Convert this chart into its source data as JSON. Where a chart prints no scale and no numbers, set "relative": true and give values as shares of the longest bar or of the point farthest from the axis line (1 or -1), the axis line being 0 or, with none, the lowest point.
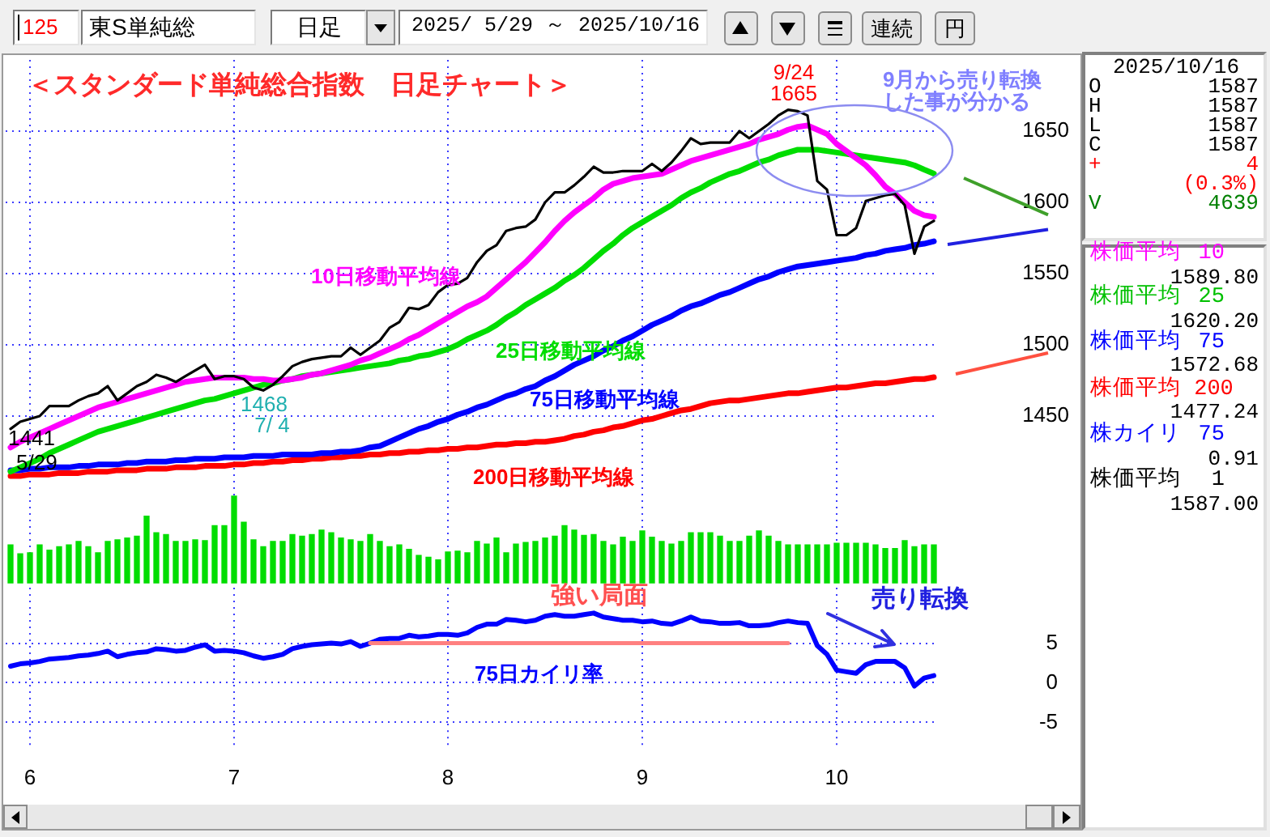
{
  "chart_data": [
    {
      "type": "other",
      "annotations": [
        "125",
        "東S単純総",
        "日足",
        "2025/ 5/29 ～ 2025/10/16",
        "連続",
        "円"
      ]
    },
    {
      "type": "line",
      "title": "＜スタンダード単純総合指数　日足チャート＞",
      "categories": [
        null,
        null,
        "6",
        null,
        null,
        null,
        null,
        null,
        null,
        null,
        null,
        null,
        null,
        null,
        null,
        null,
        null,
        null,
        null,
        null,
        null,
        null,
        null,
        "7",
        null,
        null,
        null,
        null,
        null,
        null,
        null,
        null,
        null,
        null,
        null,
        null,
        null,
        null,
        null,
        null,
        null,
        null,
        null,
        null,
        null,
        "8",
        null,
        null,
        null,
        null,
        null,
        null,
        null,
        null,
        null,
        null,
        null,
        null,
        null,
        null,
        null,
        null,
        null,
        null,
        null,
        "9",
        null,
        null,
        null,
        null,
        null,
        null,
        null,
        null,
        null,
        null,
        null,
        null,
        null,
        null,
        null,
        null,
        null,
        null,
        null,
        "10",
        null,
        null,
        null,
        null,
        null,
        null,
        null,
        null,
        null,
        null
      ],
      "series": [
        {
          "color": "#000000",
          "values": [
            1441,
            1446,
            1448,
            1450,
            1457,
            1457,
            1457,
            1461,
            1464,
            1466,
            1471,
            1461,
            1466,
            1471,
            1474,
            1479,
            1477,
            1474,
            1478,
            1482,
            1486,
            1476,
            1478,
            1478,
            1476,
            1470,
            1468,
            1472,
            1478,
            1485,
            1488,
            1490,
            1491,
            1492,
            1492,
            1498,
            1493,
            1498,
            1503,
            1512,
            1516,
            1526,
            1525,
            1528,
            1537,
            1542,
            1543,
            1547,
            1558,
            1566,
            1570,
            1580,
            1582,
            1583,
            1588,
            1600,
            1607,
            1607,
            1612,
            1618,
            1625,
            1621,
            1621,
            1622,
            1622,
            1622,
            1627,
            1622,
            1628,
            1636,
            1645,
            1641,
            1642,
            1642,
            1642,
            1650,
            1645,
            1650,
            1655,
            1661,
            1665,
            1664,
            1661,
            1615,
            1609,
            1577,
            1577,
            1582,
            1601,
            1603,
            1605,
            1606,
            1598,
            1564,
            1583,
            1587
          ]
        },
        {
          "name": "10日移動平均線",
          "color": "#ff00ff",
          "values": [
            1428,
            1432,
            1435,
            1438,
            1441,
            1444,
            1447,
            1450,
            1453,
            1456,
            1458,
            1460,
            1462,
            1464,
            1466,
            1468,
            1470,
            1472,
            1474,
            1475,
            1476,
            1477,
            1477,
            1477,
            1477,
            1476,
            1476,
            1475,
            1475,
            1476,
            1477,
            1479,
            1480,
            1482,
            1484,
            1486,
            1489,
            1491,
            1494,
            1497,
            1500,
            1504,
            1507,
            1511,
            1515,
            1519,
            1523,
            1527,
            1530,
            1534,
            1540,
            1546,
            1552,
            1558,
            1565,
            1572,
            1580,
            1587,
            1593,
            1598,
            1603,
            1609,
            1613,
            1615,
            1617,
            1618,
            1619,
            1620,
            1623,
            1626,
            1629,
            1631,
            1633,
            1635,
            1637,
            1639,
            1641,
            1644,
            1646,
            1648,
            1651,
            1653,
            1654,
            1651,
            1648,
            1641,
            1636,
            1631,
            1626,
            1619,
            1611,
            1606,
            1600,
            1594,
            1591,
            1589.8
          ]
        },
        {
          "name": "25日移動平均線",
          "color": "#00dd00",
          "values": [
            1411,
            1414,
            1417,
            1420,
            1424,
            1427,
            1430,
            1433,
            1436,
            1439,
            1441,
            1443,
            1445,
            1447,
            1449,
            1451,
            1453,
            1455,
            1457,
            1459,
            1461,
            1462,
            1464,
            1466,
            1468,
            1470,
            1472,
            1473,
            1475,
            1476,
            1478,
            1479,
            1480,
            1481,
            1482,
            1483,
            1484,
            1485,
            1486,
            1487,
            1489,
            1490,
            1492,
            1493,
            1495,
            1497,
            1500,
            1504,
            1507,
            1510,
            1514,
            1519,
            1523,
            1528,
            1532,
            1536,
            1540,
            1545,
            1549,
            1554,
            1560,
            1566,
            1571,
            1577,
            1582,
            1586,
            1590,
            1594,
            1598,
            1603,
            1607,
            1610,
            1614,
            1617,
            1620,
            1622,
            1625,
            1628,
            1630,
            1633,
            1635,
            1637,
            1637,
            1637,
            1636,
            1635,
            1634,
            1633,
            1632,
            1631,
            1630,
            1629,
            1628,
            1626,
            1623,
            1620.2
          ]
        },
        {
          "name": "75日移動平均線",
          "color": "#0000ff",
          "values": [
            1412,
            1412,
            1413,
            1413,
            1414,
            1414,
            1414,
            1415,
            1415,
            1416,
            1416,
            1416,
            1417,
            1417,
            1418,
            1418,
            1418,
            1419,
            1419,
            1420,
            1420,
            1420,
            1421,
            1421,
            1421,
            1422,
            1422,
            1422,
            1423,
            1423,
            1423,
            1423,
            1424,
            1424,
            1425,
            1425,
            1426,
            1428,
            1429,
            1432,
            1435,
            1438,
            1441,
            1443,
            1446,
            1448,
            1451,
            1453,
            1456,
            1458,
            1461,
            1464,
            1466,
            1469,
            1471,
            1475,
            1478,
            1482,
            1486,
            1489,
            1492,
            1496,
            1499,
            1503,
            1506,
            1510,
            1514,
            1517,
            1520,
            1524,
            1527,
            1529,
            1532,
            1535,
            1537,
            1540,
            1543,
            1546,
            1548,
            1551,
            1553,
            1555,
            1556,
            1557,
            1558,
            1559,
            1560,
            1561,
            1563,
            1564,
            1566,
            1567,
            1568,
            1570,
            1571,
            1572.68
          ]
        },
        {
          "name": "200日移動平均線",
          "color": "#ff0000",
          "values": [
            1408,
            1408,
            1409,
            1409,
            1409,
            1410,
            1410,
            1410,
            1411,
            1411,
            1411,
            1412,
            1412,
            1412,
            1413,
            1413,
            1413,
            1414,
            1414,
            1414,
            1415,
            1415,
            1415,
            1416,
            1416,
            1417,
            1417,
            1418,
            1418,
            1419,
            1419,
            1420,
            1420,
            1421,
            1421,
            1422,
            1422,
            1423,
            1423,
            1424,
            1424,
            1425,
            1425,
            1426,
            1426,
            1427,
            1427,
            1428,
            1428,
            1429,
            1430,
            1430,
            1431,
            1431,
            1432,
            1432,
            1433,
            1434,
            1436,
            1437,
            1439,
            1440,
            1442,
            1443,
            1445,
            1447,
            1448,
            1450,
            1452,
            1454,
            1455,
            1457,
            1459,
            1460,
            1461,
            1461,
            1462,
            1463,
            1464,
            1465,
            1466,
            1466,
            1467,
            1468,
            1469,
            1470,
            1470,
            1471,
            1472,
            1473,
            1473,
            1474,
            1475,
            1476,
            1476,
            1477.24
          ]
        }
      ],
      "ylim": [
        1400,
        1700
      ],
      "yticks": [
        1450,
        1500,
        1550,
        1600,
        1650
      ],
      "grid": true,
      "tick_labels": "y",
      "annotations": [
        "9/24",
        "1665",
        "1441",
        "5/29",
        "1468",
        "7/ 4",
        "9月から売り転換",
        "した事が分かる"
      ]
    },
    {
      "type": "bar",
      "relative": true,
      "categories": [
        null,
        null,
        "6",
        null,
        null,
        null,
        null,
        null,
        null,
        null,
        null,
        null,
        null,
        null,
        null,
        null,
        null,
        null,
        null,
        null,
        null,
        null,
        null,
        "7",
        null,
        null,
        null,
        null,
        null,
        null,
        null,
        null,
        null,
        null,
        null,
        null,
        null,
        null,
        null,
        null,
        null,
        null,
        null,
        null,
        null,
        "8",
        null,
        null,
        null,
        null,
        null,
        null,
        null,
        null,
        null,
        null,
        null,
        null,
        null,
        null,
        null,
        null,
        null,
        null,
        null,
        "9",
        null,
        null,
        null,
        null,
        null,
        null,
        null,
        null,
        null,
        null,
        null,
        null,
        null,
        null,
        null,
        null,
        null,
        null,
        null,
        "10",
        null,
        null,
        null,
        null,
        null,
        null,
        null,
        null,
        null,
        null
      ],
      "values": [
        0.44,
        0.34,
        0.35,
        0.44,
        0.38,
        0.42,
        0.44,
        0.48,
        0.42,
        0.35,
        0.48,
        0.5,
        0.52,
        0.54,
        0.77,
        0.58,
        0.56,
        0.48,
        0.48,
        0.5,
        0.49,
        0.66,
        0.66,
        1,
        0.7,
        0.5,
        0.42,
        0.48,
        0.48,
        0.56,
        0.54,
        0.56,
        0.61,
        0.58,
        0.52,
        0.5,
        0.48,
        0.56,
        0.48,
        0.42,
        0.44,
        0.39,
        0.32,
        0.3,
        0.27,
        0.36,
        0.37,
        0.35,
        0.48,
        0.45,
        0.52,
        0.35,
        0.45,
        0.47,
        0.48,
        0.52,
        0.54,
        0.66,
        0.61,
        0.55,
        0.56,
        0.48,
        0.44,
        0.53,
        0.48,
        0.6,
        0.53,
        0.48,
        0.45,
        0.48,
        0.58,
        0.58,
        0.58,
        0.54,
        0.48,
        0.48,
        0.54,
        0.6,
        0.54,
        0.48,
        0.44,
        0.44,
        0.44,
        0.44,
        0.44,
        0.46,
        0.46,
        0.46,
        0.46,
        0.44,
        0.4,
        0.4,
        0.49,
        0.42,
        0.44,
        0.44
      ],
      "color": "#00dd00",
      "grid": "x",
      "tick_labels": false
    },
    {
      "type": "line",
      "categories": [
        null,
        null,
        "6",
        null,
        null,
        null,
        null,
        null,
        null,
        null,
        null,
        null,
        null,
        null,
        null,
        null,
        null,
        null,
        null,
        null,
        null,
        null,
        null,
        "7",
        null,
        null,
        null,
        null,
        null,
        null,
        null,
        null,
        null,
        null,
        null,
        null,
        null,
        null,
        null,
        null,
        null,
        null,
        null,
        null,
        null,
        "8",
        null,
        null,
        null,
        null,
        null,
        null,
        null,
        null,
        null,
        null,
        null,
        null,
        null,
        null,
        null,
        null,
        null,
        null,
        null,
        "9",
        null,
        null,
        null,
        null,
        null,
        null,
        null,
        null,
        null,
        null,
        null,
        null,
        null,
        null,
        null,
        null,
        null,
        null,
        null,
        "10",
        null,
        null,
        null,
        null,
        null,
        null,
        null,
        null,
        null,
        null
      ],
      "series": [
        {
          "color": "#ff8080",
          "values": [
            null,
            null,
            null,
            null,
            null,
            null,
            null,
            null,
            null,
            null,
            null,
            null,
            null,
            null,
            null,
            null,
            null,
            null,
            null,
            null,
            null,
            null,
            null,
            null,
            null,
            null,
            null,
            null,
            null,
            null,
            null,
            null,
            null,
            null,
            null,
            null,
            null,
            5,
            5,
            5,
            5,
            5,
            5,
            5,
            5,
            5,
            5,
            5,
            5,
            5,
            5,
            5,
            5,
            5,
            5,
            5,
            5,
            5,
            5,
            5,
            5,
            5,
            5,
            5,
            5,
            5,
            5,
            5,
            5,
            5,
            5,
            5,
            5,
            5,
            5,
            5,
            5,
            5,
            5,
            5,
            5,
            null,
            null,
            null,
            null,
            null,
            null,
            null,
            null,
            null,
            null,
            null,
            null,
            null,
            null,
            null
          ]
        },
        {
          "name": "75日カイリ率",
          "color": "#0000ff",
          "values": [
            2.1,
            2.4,
            2.5,
            2.7,
            3,
            3.1,
            3.2,
            3.4,
            3.5,
            3.7,
            4,
            3.3,
            3.6,
            3.8,
            3.9,
            4.3,
            4.2,
            4,
            4.1,
            4.5,
            4.8,
            4,
            4.1,
            4,
            3.8,
            3.4,
            3.1,
            3.3,
            3.6,
            4.3,
            4.6,
            4.8,
            4.9,
            5,
            4.9,
            5.2,
            4.6,
            5,
            5.5,
            5.6,
            5.6,
            6,
            5.8,
            5.9,
            6.1,
            6.1,
            6,
            6.3,
            7,
            7.4,
            7.4,
            8,
            7.9,
            7.7,
            7.9,
            8.4,
            8.6,
            8.4,
            8.4,
            8.6,
            8.8,
            8.3,
            8.1,
            7.9,
            7.9,
            7.7,
            7.8,
            7.5,
            7.4,
            7.8,
            8.3,
            7.8,
            7.7,
            7.5,
            7.5,
            7.6,
            7.2,
            7.2,
            7.3,
            7.6,
            7.8,
            7.6,
            7.5,
            4.7,
            3.6,
            1.6,
            1.4,
            1.2,
            2.3,
            2.7,
            2.7,
            2.7,
            1.9,
            -0.4,
            0.6,
            0.91
          ]
        }
      ],
      "ylim": [
        -8,
        12
      ],
      "yticks": [
        -5,
        0,
        5
      ],
      "grid": true,
      "annotations": [
        "強い局面",
        "売り転換"
      ]
    },
    {
      "type": "other",
      "annotations": [
        "2025/10/16",
        "O",
        "1587",
        "H",
        "1587",
        "L",
        "1587",
        "C",
        "1587",
        "+",
        "4",
        "(0.3%)",
        "V",
        "4639",
        "株価平均 10",
        "1589.80",
        "株価平均 25",
        "1620.20",
        "株価平均 75",
        "1572.68",
        "株価平均 200",
        "1477.24",
        "株カイリ 75",
        "0.91",
        "株価平均 1",
        "1587.00"
      ]
    }
  ]
}
